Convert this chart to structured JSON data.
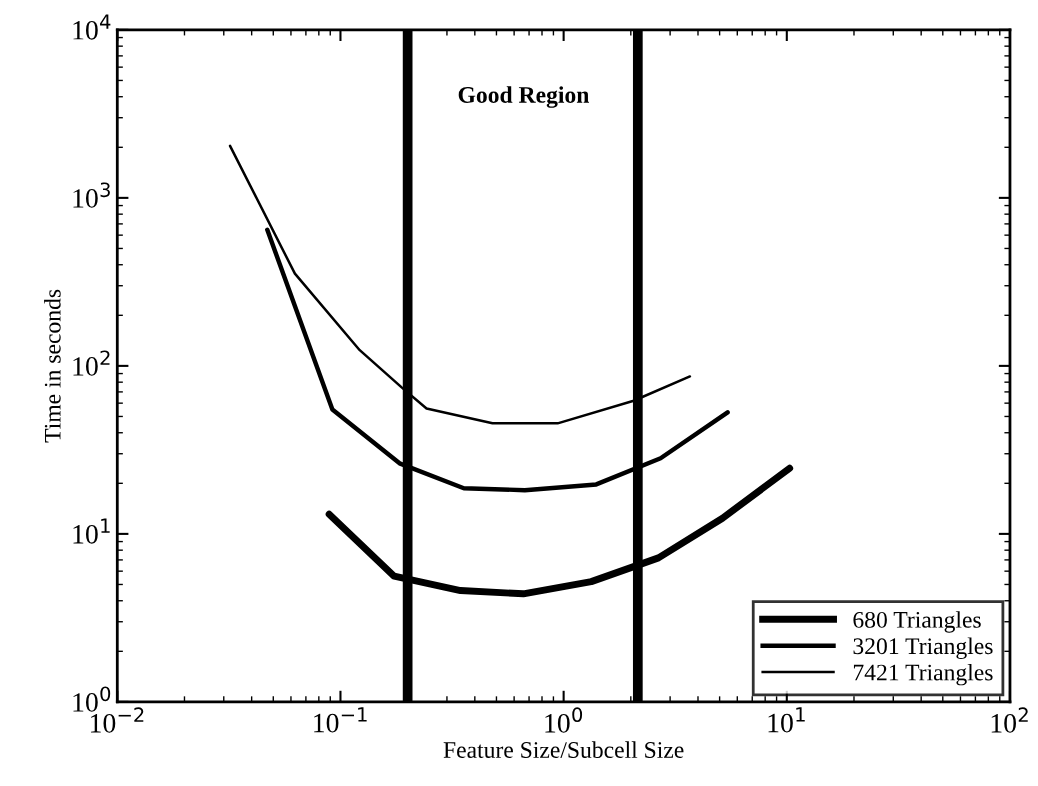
{
  "chart_data": {
    "type": "line",
    "xlabel": "Feature Size/Subcell Size",
    "ylabel": "Time in seconds",
    "log": "xy",
    "grid": false,
    "legend": "bottom right",
    "marker": "none",
    "line_style": "solid",
    "xlim": [
      0.01,
      100
    ],
    "ylim": [
      1,
      10000
    ],
    "xticks": [
      {
        "value": 0.01,
        "label": "10$^{−2}$"
      },
      {
        "value": 0.1,
        "label": "10$^{−1}$"
      },
      {
        "value": 1,
        "label": "10$^{0}$"
      },
      {
        "value": 10,
        "label": "10$^{1}$"
      },
      {
        "value": 100,
        "label": "10$^{2}$"
      }
    ],
    "yticks": [
      {
        "value": 1,
        "label": "10$^{0}$"
      },
      {
        "value": 10,
        "label": "10$^{1}$"
      },
      {
        "value": 100,
        "label": "10$^{2}$"
      },
      {
        "value": 1000,
        "label": "10$^{3}$"
      },
      {
        "value": 10000,
        "label": "10$^{4}$"
      }
    ],
    "series": [
      {
        "name": "680 Triangles",
        "color": "#000000",
        "x": [
          0.089,
          0.174,
          0.345,
          0.66,
          1.33,
          2.66,
          5.15,
          10.3
        ],
        "values": [
          13.1,
          5.6,
          4.6,
          4.4,
          5.2,
          7.2,
          12.4,
          24.6
        ]
      },
      {
        "name": "3201 Triangles",
        "color": "#000000",
        "x": [
          0.047,
          0.092,
          0.184,
          0.357,
          0.67,
          1.4,
          2.72,
          5.43
        ],
        "values": [
          646,
          55,
          26.3,
          18.7,
          18.2,
          19.7,
          28.2,
          52.9
        ]
      },
      {
        "name": "7421 Triangles",
        "color": "#000000",
        "x": [
          0.032,
          0.0625,
          0.122,
          0.188,
          0.243,
          0.48,
          0.94,
          2.06,
          3.68
        ],
        "values": [
          2040,
          354,
          124,
          74.5,
          55.8,
          45.5,
          45.5,
          62,
          86.5
        ]
      }
    ],
    "ref_lines": [
      {
        "axis": "x",
        "value": 0.2,
        "color": "#000000"
      },
      {
        "axis": "x",
        "value": 2.15,
        "color": "#000000"
      }
    ],
    "annotations": [
      "Good Region"
    ]
  }
}
